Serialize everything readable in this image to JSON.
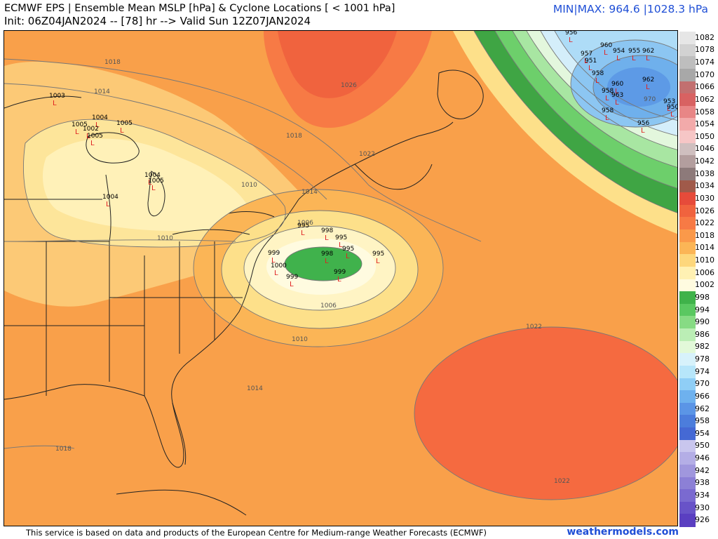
{
  "header": {
    "title_line1": "ECMWF EPS | Ensemble Mean MSLP [hPa] & Cyclone Locations [ < 1001 hPa]",
    "title_line2": "Init: 06Z04JAN2024 -- [78] hr --> Valid Sun 12Z07JAN2024",
    "minmax": "MIN|MAX: 964.6 |1028.3 hPa"
  },
  "footer": {
    "credit": "This service is based on data and products of the European Centre for Medium-range Weather Forecasts (ECMWF)",
    "brand": "weathermodels.com"
  },
  "colorbar": {
    "labels": [
      "1082",
      "1078",
      "1074",
      "1070",
      "1066",
      "1062",
      "1058",
      "1054",
      "1050",
      "1046",
      "1042",
      "1038",
      "1034",
      "1030",
      "1026",
      "1022",
      "1018",
      "1014",
      "1010",
      "1006",
      "1002",
      "998",
      "994",
      "990",
      "986",
      "982",
      "978",
      "974",
      "970",
      "966",
      "962",
      "958",
      "954",
      "950",
      "946",
      "942",
      "938",
      "934",
      "930",
      "926"
    ],
    "colors": [
      "#e6e6e6",
      "#d2d2d2",
      "#bebebe",
      "#a8a8a8",
      "#c27070",
      "#d86262",
      "#e88686",
      "#f2aaaa",
      "#f6c6c6",
      "#cfbfbf",
      "#b39e9e",
      "#8d7a7a",
      "#a05a4a",
      "#e64b3a",
      "#f0633e",
      "#f77a45",
      "#fa994a",
      "#fbb556",
      "#fdd77c",
      "#fff1b3",
      "#fffbe0",
      "#3fb24a",
      "#5ac861",
      "#87db84",
      "#bbeeb5",
      "#e2f9d9",
      "#d7f2fb",
      "#b7e6fa",
      "#8fcef6",
      "#6eb1ee",
      "#5b95e6",
      "#4c7ddc",
      "#4569d4",
      "#c9c6ee",
      "#b4aee6",
      "#a097dd",
      "#8c80d6",
      "#7a6ad0",
      "#6853c8",
      "#5a3fc1"
    ]
  },
  "isobar_labels": [
    {
      "text": "1018"
    },
    {
      "text": "1014"
    },
    {
      "text": "1026"
    },
    {
      "text": "1018"
    },
    {
      "text": "1022"
    },
    {
      "text": "1010"
    },
    {
      "text": "1014"
    },
    {
      "text": "1006"
    },
    {
      "text": "1010"
    },
    {
      "text": "1006"
    },
    {
      "text": "1010"
    },
    {
      "text": "1014"
    },
    {
      "text": "1018"
    },
    {
      "text": "1022"
    },
    {
      "text": "1022"
    },
    {
      "text": "970"
    }
  ],
  "cyclone_labels": [
    {
      "text": "1003"
    },
    {
      "text": "1004"
    },
    {
      "text": "1005"
    },
    {
      "text": "1005"
    },
    {
      "text": "1002"
    },
    {
      "text": "1005"
    },
    {
      "text": "1004"
    },
    {
      "text": "1005"
    },
    {
      "text": "1004"
    },
    {
      "text": "995"
    },
    {
      "text": "998"
    },
    {
      "text": "995"
    },
    {
      "text": "999"
    },
    {
      "text": "995"
    },
    {
      "text": "1000"
    },
    {
      "text": "999"
    },
    {
      "text": "999"
    },
    {
      "text": "998"
    },
    {
      "text": "995"
    },
    {
      "text": "956"
    },
    {
      "text": "960"
    },
    {
      "text": "954"
    },
    {
      "text": "955"
    },
    {
      "text": "962"
    },
    {
      "text": "957"
    },
    {
      "text": "951"
    },
    {
      "text": "958"
    },
    {
      "text": "960"
    },
    {
      "text": "963"
    },
    {
      "text": "958"
    },
    {
      "text": "956"
    },
    {
      "text": "962"
    },
    {
      "text": "958"
    },
    {
      "text": "953"
    },
    {
      "text": "950"
    }
  ]
}
